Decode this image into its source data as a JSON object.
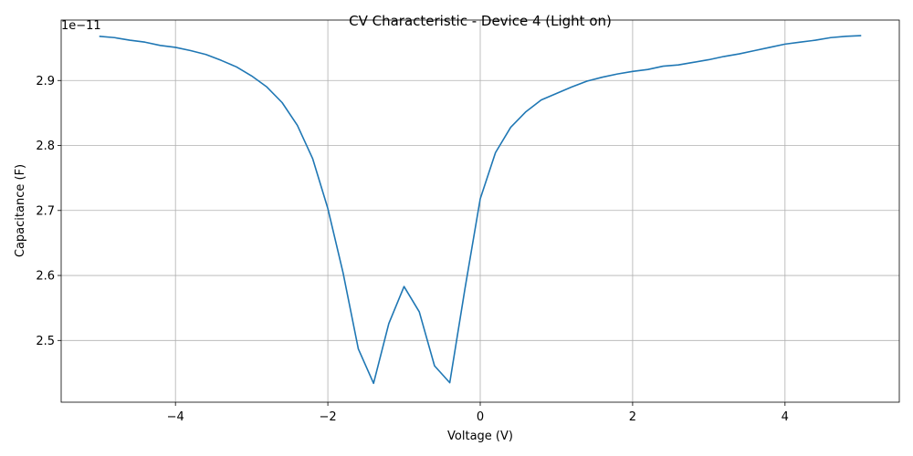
{
  "chart_data": {
    "type": "line",
    "title": "CV Characteristic - Device 4 (Light on)",
    "xlabel": "Voltage (V)",
    "ylabel": "Capacitance (F)",
    "y_offset_label": "1e−11",
    "y_scale": 1e-11,
    "xlim": [
      -5.5,
      5.5
    ],
    "ylim": [
      2.405,
      2.993
    ],
    "grid": true,
    "x_ticks": [
      -4,
      -2,
      0,
      2,
      4
    ],
    "x_tick_labels": [
      "−4",
      "−2",
      "0",
      "2",
      "4"
    ],
    "y_ticks": [
      2.5,
      2.6,
      2.7,
      2.8,
      2.9
    ],
    "y_tick_labels": [
      "2.5",
      "2.6",
      "2.7",
      "2.8",
      "2.9"
    ],
    "line_color": "#1f77b4",
    "series": [
      {
        "x": [
          -5.0,
          -4.8,
          -4.6,
          -4.4,
          -4.2,
          -4.0,
          -3.8,
          -3.6,
          -3.4,
          -3.2,
          -3.0,
          -2.8,
          -2.6,
          -2.4,
          -2.2,
          -2.0,
          -1.8,
          -1.6,
          -1.4,
          -1.2,
          -1.0,
          -0.8,
          -0.6,
          -0.4,
          -0.2,
          0.0,
          0.2,
          0.4,
          0.6,
          0.8,
          1.0,
          1.2,
          1.4,
          1.6,
          1.8,
          2.0,
          2.2,
          2.4,
          2.6,
          2.8,
          3.0,
          3.2,
          3.4,
          3.6,
          3.8,
          4.0,
          4.2,
          4.4,
          4.6,
          4.8,
          5.0
        ],
        "y": [
          2.968,
          2.966,
          2.962,
          2.959,
          2.954,
          2.951,
          2.946,
          2.94,
          2.931,
          2.921,
          2.907,
          2.89,
          2.866,
          2.831,
          2.78,
          2.703,
          2.604,
          2.487,
          2.434,
          2.526,
          2.583,
          2.544,
          2.461,
          2.435,
          2.58,
          2.718,
          2.789,
          2.828,
          2.852,
          2.87,
          2.88,
          2.89,
          2.899,
          2.905,
          2.91,
          2.914,
          2.917,
          2.922,
          2.924,
          2.928,
          2.932,
          2.937,
          2.941,
          2.946,
          2.951,
          2.956,
          2.959,
          2.962,
          2.966,
          2.968,
          2.969
        ]
      }
    ]
  }
}
